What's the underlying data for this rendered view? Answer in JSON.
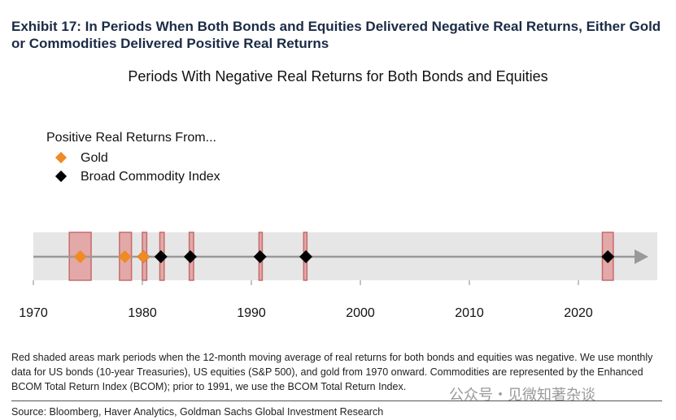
{
  "exhibit_title": "Exhibit 17: In Periods When Both Bonds and Equities Delivered Negative Real Returns, Either Gold or Commodities Delivered Positive Real Returns",
  "legend": {
    "heading": "Positive Real Returns From...",
    "gold_label": "Gold",
    "commodity_label": "Broad Commodity Index"
  },
  "colors": {
    "gold": "#f08a24",
    "commodity": "#000000",
    "shade_fill": "#e3a9a9",
    "shade_stroke": "#c76a6a",
    "band": "#e6e6e6",
    "axis_line": "#999999"
  },
  "chart_data": {
    "type": "scatter",
    "title": "Periods With Negative Real Returns for Both Bonds and Equities",
    "xlabel": "",
    "ylabel": "",
    "xlim": [
      1970,
      2027
    ],
    "x_ticks": [
      1970,
      1980,
      1990,
      2000,
      2010,
      2020
    ],
    "shaded_periods": [
      [
        1973.3,
        1975.3
      ],
      [
        1977.9,
        1979.0
      ],
      [
        1980.0,
        1980.4
      ],
      [
        1981.6,
        1982.0
      ],
      [
        1984.3,
        1984.7
      ],
      [
        1990.7,
        1991.0
      ],
      [
        1994.8,
        1995.1
      ],
      [
        2022.2,
        2023.2
      ]
    ],
    "series": [
      {
        "name": "Gold",
        "x": [
          1974.3,
          1978.4,
          1980.1
        ]
      },
      {
        "name": "Broad Commodity Index",
        "x": [
          1980.1,
          1981.7,
          1984.4,
          1990.8,
          1995.0,
          2022.7
        ]
      }
    ]
  },
  "footnote": "Red shaded areas mark periods when the 12-month moving average of real returns for both bonds and equities was negative. We use monthly data for US bonds (10-year Treasuries), US equities (S&P 500), and gold from 1970 onward. Commodities are represented by the Enhanced BCOM Total Return Index (BCOM); prior to 1991, we use the BCOM Total Return Index.",
  "source": "Source: Bloomberg, Haver Analytics, Goldman Sachs Global Investment Research",
  "watermark": "公众号・见微知著杂谈"
}
